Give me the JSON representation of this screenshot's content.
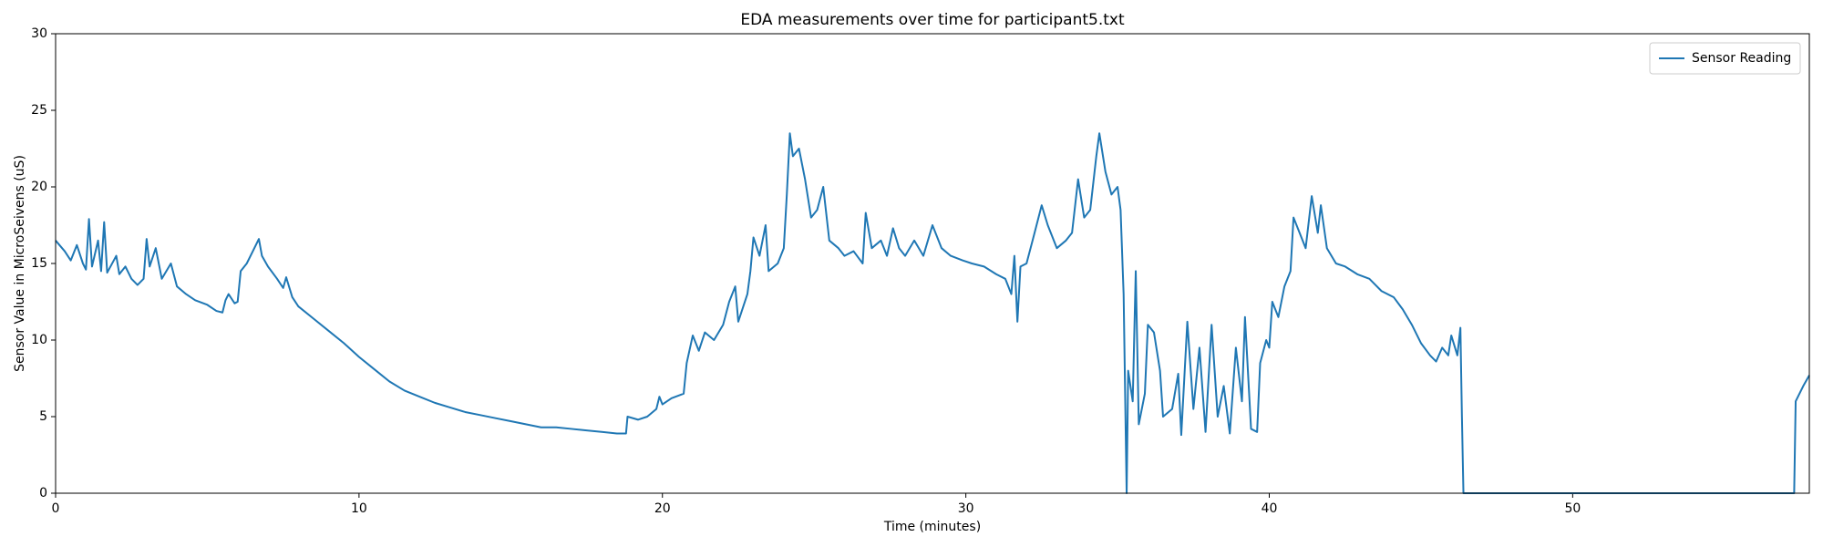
{
  "chart_data": {
    "type": "line",
    "title": "EDA measurements over time for participant5.txt",
    "x_label": "Time (minutes)",
    "y_label": "Sensor Value in MicroSeivens (uS)",
    "xlim": [
      0,
      57.8
    ],
    "ylim": [
      0,
      30
    ],
    "xticks": [
      0,
      10,
      20,
      30,
      40,
      50
    ],
    "yticks": [
      0,
      5,
      10,
      15,
      20,
      25,
      30
    ],
    "legend": "upper right",
    "x": [
      0,
      0.3,
      0.5,
      0.7,
      0.9,
      1.0,
      1.1,
      1.2,
      1.4,
      1.5,
      1.6,
      1.7,
      2.0,
      2.1,
      2.3,
      2.5,
      2.7,
      2.9,
      3.0,
      3.1,
      3.3,
      3.5,
      3.8,
      4.0,
      4.3,
      4.6,
      5.0,
      5.3,
      5.5,
      5.6,
      5.7,
      5.9,
      6.0,
      6.1,
      6.3,
      6.5,
      6.7,
      6.8,
      7.0,
      7.3,
      7.5,
      7.6,
      7.8,
      8.0,
      8.5,
      9.0,
      9.5,
      10.0,
      10.5,
      11.0,
      11.5,
      12.0,
      12.5,
      13.0,
      13.5,
      14.0,
      14.5,
      15.0,
      15.5,
      16.0,
      16.5,
      17.0,
      17.5,
      18.0,
      18.5,
      18.8,
      18.85,
      19.2,
      19.5,
      19.8,
      19.9,
      20.0,
      20.3,
      20.7,
      20.8,
      21.0,
      21.2,
      21.4,
      21.7,
      22.0,
      22.2,
      22.4,
      22.5,
      22.8,
      22.9,
      23.0,
      23.2,
      23.4,
      23.5,
      23.8,
      24.0,
      24.1,
      24.2,
      24.3,
      24.5,
      24.7,
      24.9,
      25.1,
      25.3,
      25.5,
      25.8,
      26.0,
      26.3,
      26.6,
      26.7,
      26.9,
      27.2,
      27.4,
      27.6,
      27.8,
      28.0,
      28.3,
      28.6,
      28.9,
      29.2,
      29.5,
      29.9,
      30.2,
      30.6,
      31.0,
      31.3,
      31.5,
      31.6,
      31.7,
      31.8,
      32.0,
      32.2,
      32.5,
      32.7,
      33.0,
      33.3,
      33.5,
      33.7,
      33.9,
      34.1,
      34.3,
      34.4,
      34.6,
      34.8,
      35.0,
      35.1,
      35.2,
      35.3,
      35.35,
      35.5,
      35.6,
      35.7,
      35.9,
      36.0,
      36.2,
      36.4,
      36.5,
      36.8,
      37.0,
      37.1,
      37.3,
      37.5,
      37.7,
      37.9,
      38.1,
      38.3,
      38.5,
      38.7,
      38.9,
      39.1,
      39.2,
      39.4,
      39.6,
      39.7,
      39.9,
      40.0,
      40.1,
      40.3,
      40.5,
      40.7,
      40.8,
      41.0,
      41.2,
      41.4,
      41.6,
      41.7,
      41.9,
      42.2,
      42.5,
      42.9,
      43.3,
      43.7,
      44.1,
      44.4,
      44.7,
      45.0,
      45.3,
      45.5,
      45.7,
      45.9,
      46.0,
      46.2,
      46.3,
      46.35,
      46.4,
      50,
      57.3,
      57.35,
      57.6,
      57.8
    ],
    "series": [
      {
        "name": "Sensor Reading",
        "color": "#1f77b4",
        "values": [
          16.5,
          15.8,
          15.2,
          16.2,
          15.0,
          14.6,
          17.9,
          14.8,
          16.5,
          14.5,
          17.7,
          14.4,
          15.5,
          14.3,
          14.8,
          14.0,
          13.6,
          14.0,
          16.6,
          14.8,
          16.0,
          14.0,
          15.0,
          13.5,
          13.0,
          12.6,
          12.3,
          11.9,
          11.8,
          12.6,
          13.0,
          12.4,
          12.5,
          14.5,
          15.0,
          15.8,
          16.6,
          15.5,
          14.8,
          14.0,
          13.4,
          14.1,
          12.8,
          12.2,
          11.4,
          10.6,
          9.8,
          8.9,
          8.1,
          7.3,
          6.7,
          6.3,
          5.9,
          5.6,
          5.3,
          5.1,
          4.9,
          4.7,
          4.5,
          4.3,
          4.3,
          4.2,
          4.1,
          4.0,
          3.9,
          3.9,
          5.0,
          4.8,
          5.0,
          5.5,
          6.3,
          5.8,
          6.2,
          6.5,
          8.5,
          10.3,
          9.3,
          10.5,
          10.0,
          11.0,
          12.5,
          13.5,
          11.2,
          13.0,
          14.5,
          16.7,
          15.5,
          17.5,
          14.5,
          15.0,
          16.0,
          19.5,
          23.5,
          22.0,
          22.5,
          20.5,
          18.0,
          18.5,
          20.0,
          16.5,
          16.0,
          15.5,
          15.8,
          15.0,
          18.3,
          16.0,
          16.5,
          15.5,
          17.3,
          16.0,
          15.5,
          16.5,
          15.5,
          17.5,
          16.0,
          15.5,
          15.2,
          15.0,
          14.8,
          14.3,
          14.0,
          13.0,
          15.5,
          11.2,
          14.8,
          15.0,
          16.5,
          18.8,
          17.5,
          16.0,
          16.5,
          17.0,
          20.5,
          18.0,
          18.5,
          22.0,
          23.5,
          21.0,
          19.5,
          20.0,
          18.5,
          13.0,
          0,
          8.0,
          6.0,
          14.5,
          4.5,
          6.5,
          11.0,
          10.5,
          8.0,
          5.0,
          5.5,
          7.8,
          3.8,
          11.2,
          5.5,
          9.5,
          4.0,
          11.0,
          5.0,
          7.0,
          3.9,
          9.5,
          6.0,
          11.5,
          4.2,
          4.0,
          8.5,
          10.0,
          9.5,
          12.5,
          11.5,
          13.5,
          14.5,
          18.0,
          17.0,
          16.0,
          19.4,
          17.0,
          18.8,
          16.0,
          15.0,
          14.8,
          14.3,
          14.0,
          13.2,
          12.8,
          12.0,
          11.0,
          9.8,
          9.0,
          8.6,
          9.5,
          9.0,
          10.3,
          9.0,
          10.8,
          5.0,
          0,
          0,
          0,
          6.0,
          7.0,
          7.7
        ]
      }
    ]
  }
}
